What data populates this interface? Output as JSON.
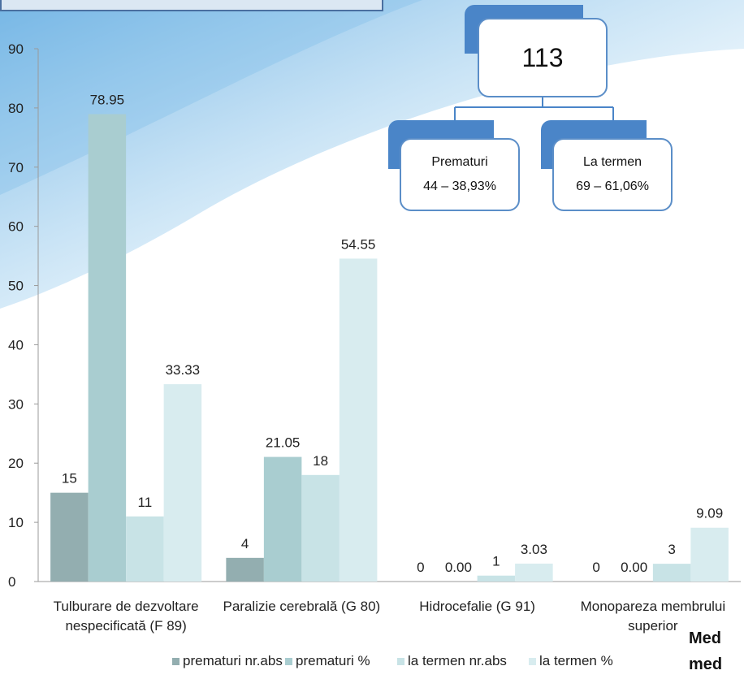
{
  "chart_data": {
    "type": "bar",
    "categories": [
      [
        "Tulburare de dezvoltare",
        "nespecificată (F 89)"
      ],
      [
        "Paralizie cerebrală (G 80)"
      ],
      [
        "Hidrocefalie (G 91)"
      ],
      [
        "Monopareza membrului",
        "superior"
      ]
    ],
    "series": [
      {
        "name": "prematuri nr.abs",
        "values": [
          15,
          4,
          0,
          0
        ],
        "labels": [
          "15",
          "4",
          "0",
          "0"
        ],
        "color": "#93aeb0"
      },
      {
        "name": "prematuri %",
        "values": [
          78.95,
          21.05,
          0,
          0
        ],
        "labels": [
          "78.95",
          "21.05",
          "0.00",
          "0.00"
        ],
        "color": "#a9cdd0"
      },
      {
        "name": "la termen nr.abs",
        "values": [
          11,
          18,
          1,
          3
        ],
        "labels": [
          "11",
          "18",
          "1",
          "3"
        ],
        "color": "#c8e3e6"
      },
      {
        "name": "la termen %",
        "values": [
          33.33,
          54.55,
          3.03,
          9.09
        ],
        "labels": [
          "33.33",
          "54.55",
          "3.03",
          "9.09"
        ],
        "color": "#d8ecef"
      }
    ],
    "ylim": [
      0,
      90
    ],
    "yticks": [
      "0",
      "10",
      "20",
      "30",
      "40",
      "50",
      "60",
      "70",
      "80",
      "90"
    ],
    "legend_position": "bottom",
    "grid": false
  },
  "org_chart": {
    "root": "113",
    "children": [
      {
        "title": "Prematuri",
        "value": "44 – 38,93%"
      },
      {
        "title": "La termen",
        "value": "69 – 61,06%"
      }
    ]
  },
  "corner_text": {
    "line1": "Med",
    "line2": "med"
  },
  "colors": {
    "org_border": "#5b8ec8",
    "org_tab": "#4a85c8",
    "org_line": "#4a85c8"
  }
}
